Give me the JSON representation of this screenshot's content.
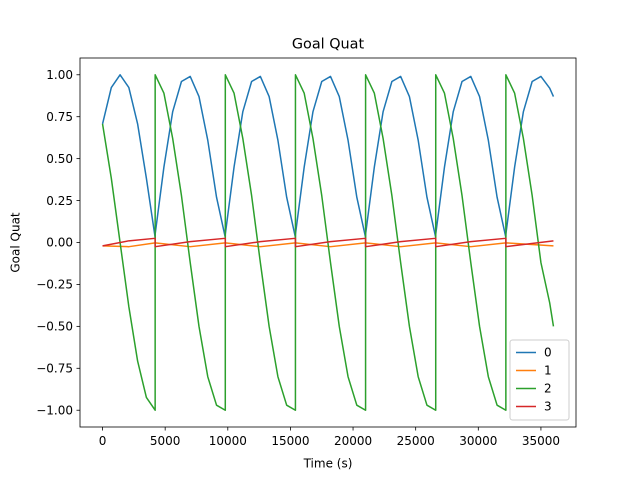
{
  "chart_data": {
    "type": "line",
    "title": "Goal Quat",
    "xlabel": "Time (s)",
    "ylabel": "Goal Quat",
    "xlim": [
      -1800,
      37800
    ],
    "ylim": [
      -1.1,
      1.1
    ],
    "xticks": [
      0,
      5000,
      10000,
      15000,
      20000,
      25000,
      30000,
      35000
    ],
    "xtick_labels": [
      "0",
      "5000",
      "10000",
      "15000",
      "20000",
      "25000",
      "30000",
      "35000"
    ],
    "yticks": [
      -1.0,
      -0.75,
      -0.5,
      -0.25,
      0.0,
      0.25,
      0.5,
      0.75,
      1.0
    ],
    "ytick_labels": [
      "−1.00",
      "−0.75",
      "−0.50",
      "−0.25",
      "0.00",
      "0.25",
      "0.50",
      "0.75",
      "1.00"
    ],
    "grid": false,
    "legend_position": "lower-right",
    "series": [
      {
        "name": "0",
        "color": "#1f77b4",
        "x": [
          0,
          700,
          1400,
          2100,
          2800,
          3500,
          4200,
          4201,
          4900,
          5600,
          6300,
          7000,
          7700,
          8400,
          9100,
          9800,
          9801,
          10500,
          11200,
          11900,
          12600,
          13300,
          14000,
          14700,
          15400,
          15401,
          16100,
          16800,
          17500,
          18200,
          18900,
          19600,
          20300,
          21000,
          21001,
          21700,
          22400,
          23100,
          23800,
          24500,
          25200,
          25900,
          26600,
          26601,
          27300,
          28000,
          28700,
          29400,
          30100,
          30800,
          31500,
          32200,
          32201,
          32900,
          33600,
          34300,
          35000,
          35700,
          36000
        ],
        "y": [
          0.707,
          0.924,
          1.0,
          0.924,
          0.707,
          0.383,
          0.03,
          0.05,
          0.45,
          0.78,
          0.96,
          0.99,
          0.87,
          0.61,
          0.27,
          0.03,
          0.05,
          0.45,
          0.78,
          0.96,
          0.99,
          0.87,
          0.61,
          0.27,
          0.03,
          0.05,
          0.45,
          0.78,
          0.96,
          0.99,
          0.87,
          0.61,
          0.27,
          0.03,
          0.05,
          0.45,
          0.78,
          0.96,
          0.99,
          0.87,
          0.61,
          0.27,
          0.03,
          0.05,
          0.45,
          0.78,
          0.96,
          0.99,
          0.87,
          0.61,
          0.27,
          0.03,
          0.05,
          0.45,
          0.78,
          0.96,
          0.99,
          0.92,
          0.87
        ]
      },
      {
        "name": "1",
        "color": "#ff7f0e",
        "x": [
          0,
          2100,
          4200,
          4201,
          7000,
          9800,
          9801,
          12600,
          15400,
          15401,
          18200,
          21000,
          21001,
          23800,
          26600,
          26601,
          29400,
          32200,
          32201,
          36000
        ],
        "y": [
          -0.02,
          -0.025,
          -0.002,
          -0.002,
          -0.025,
          -0.002,
          -0.002,
          -0.025,
          -0.002,
          -0.002,
          -0.025,
          -0.002,
          -0.002,
          -0.025,
          -0.002,
          -0.002,
          -0.025,
          -0.002,
          -0.002,
          -0.02
        ]
      },
      {
        "name": "2",
        "color": "#2ca02c",
        "x": [
          0,
          700,
          1400,
          2100,
          2800,
          3500,
          4200,
          4201,
          4900,
          5600,
          6300,
          7000,
          7700,
          8400,
          9100,
          9800,
          9801,
          10500,
          11200,
          11900,
          12600,
          13300,
          14000,
          14700,
          15400,
          15401,
          16100,
          16800,
          17500,
          18200,
          18900,
          19600,
          20300,
          21000,
          21001,
          21700,
          22400,
          23100,
          23800,
          24500,
          25200,
          25900,
          26600,
          26601,
          27300,
          28000,
          28700,
          29400,
          30100,
          30800,
          31500,
          32200,
          32201,
          32900,
          33600,
          34300,
          35000,
          35700,
          36000
        ],
        "y": [
          0.707,
          0.383,
          0.0,
          -0.383,
          -0.707,
          -0.924,
          -1.0,
          1.0,
          0.89,
          0.62,
          0.28,
          -0.12,
          -0.5,
          -0.8,
          -0.97,
          -1.0,
          1.0,
          0.89,
          0.62,
          0.28,
          -0.12,
          -0.5,
          -0.8,
          -0.97,
          -1.0,
          1.0,
          0.89,
          0.62,
          0.28,
          -0.12,
          -0.5,
          -0.8,
          -0.97,
          -1.0,
          1.0,
          0.89,
          0.62,
          0.28,
          -0.12,
          -0.5,
          -0.8,
          -0.97,
          -1.0,
          1.0,
          0.89,
          0.62,
          0.28,
          -0.12,
          -0.5,
          -0.8,
          -0.97,
          -1.0,
          1.0,
          0.89,
          0.62,
          0.28,
          -0.12,
          -0.36,
          -0.5
        ]
      },
      {
        "name": "3",
        "color": "#d62728",
        "x": [
          0,
          2100,
          4200,
          4201,
          7000,
          9800,
          9801,
          12600,
          15400,
          15401,
          18200,
          21000,
          21001,
          23800,
          26600,
          26601,
          29400,
          32200,
          32201,
          36000
        ],
        "y": [
          -0.02,
          0.01,
          0.025,
          -0.025,
          0.005,
          0.025,
          -0.025,
          0.005,
          0.025,
          -0.025,
          0.005,
          0.025,
          -0.025,
          0.005,
          0.025,
          -0.025,
          0.005,
          0.025,
          -0.025,
          0.01
        ]
      }
    ]
  }
}
